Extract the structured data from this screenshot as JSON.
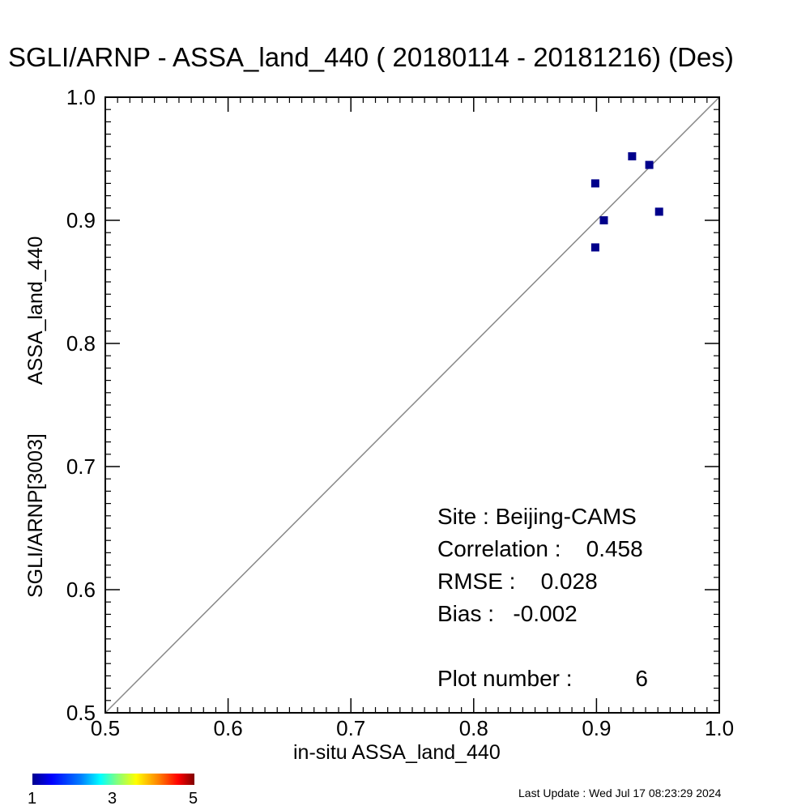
{
  "chart_data": {
    "type": "scatter",
    "title": "SGLI/ARNP - ASSA_land_440 ( 20180114 - 20181216) (Des)",
    "xlabel": "in-situ ASSA_land_440",
    "ylabel_parts": [
      "SGLI/ARNP[3003]",
      "ASSA_land_440"
    ],
    "xlim": [
      0.5,
      1.0
    ],
    "ylim": [
      0.5,
      1.0
    ],
    "xticks": [
      "0.5",
      "0.6",
      "0.7",
      "0.8",
      "0.9",
      "1.0"
    ],
    "yticks": [
      "0.5",
      "0.6",
      "0.7",
      "0.8",
      "0.9",
      "1.0"
    ],
    "reference_line": "1:1",
    "marker_color": "#00008b",
    "points": [
      {
        "x": 0.899,
        "y": 0.93
      },
      {
        "x": 0.899,
        "y": 0.878
      },
      {
        "x": 0.906,
        "y": 0.9
      },
      {
        "x": 0.929,
        "y": 0.952
      },
      {
        "x": 0.943,
        "y": 0.945
      },
      {
        "x": 0.951,
        "y": 0.907
      }
    ],
    "grid": false
  },
  "stats": {
    "site": "Site : Beijing-CAMS",
    "correlation": "Correlation :    0.458",
    "rmse": "RMSE :    0.028",
    "bias": "Bias :   -0.002",
    "plot_number": "Plot number :          6"
  },
  "colorbar": {
    "labels": [
      "1",
      "3",
      "5"
    ]
  },
  "footer": "Last Update : Wed Jul 17 08:23:29 2024"
}
